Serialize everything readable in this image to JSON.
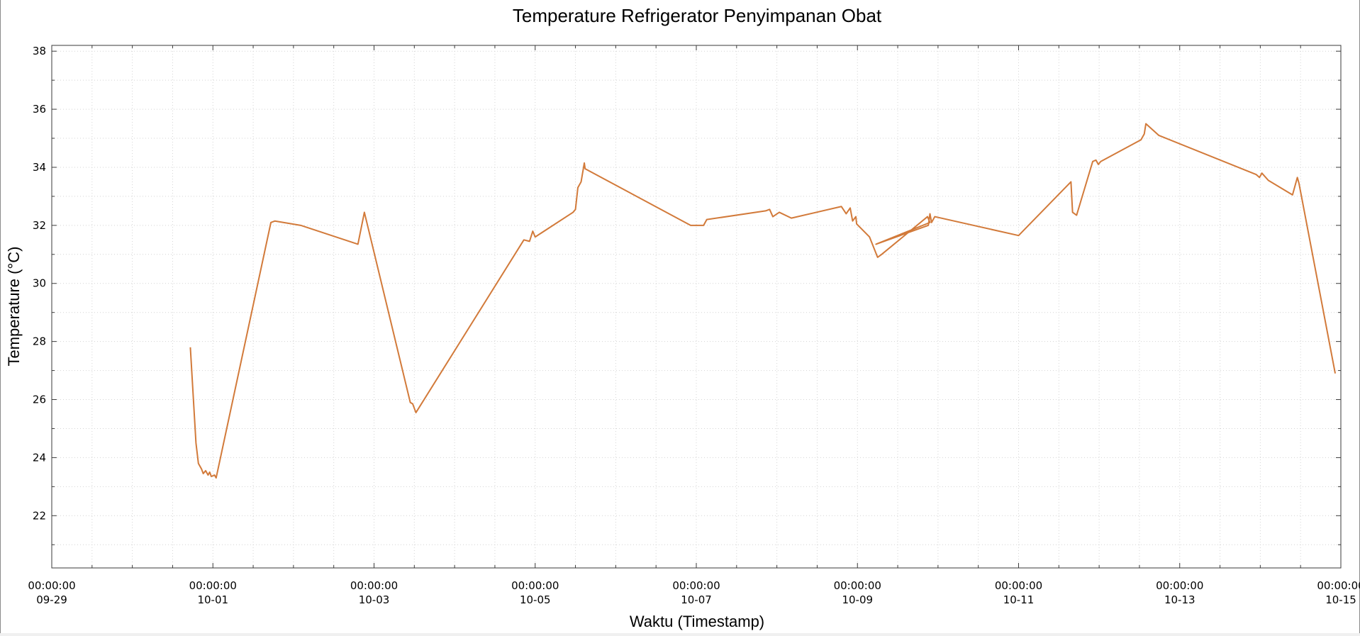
{
  "chart_data": {
    "type": "line",
    "title": "Temperature Refrigerator Penyimpanan Obat",
    "xlabel": "Waktu (Timestamp)",
    "ylabel": "Temperature (°C)",
    "x_start": "09-29",
    "x_end": "10-15",
    "ylim": [
      20.2,
      38.2
    ],
    "y_ticks": [
      22,
      24,
      26,
      28,
      30,
      32,
      34,
      36,
      38
    ],
    "x_ticks": [
      {
        "day": 0,
        "time": "00:00:00",
        "date": "09-29"
      },
      {
        "day": 2,
        "time": "00:00:00",
        "date": "10-01"
      },
      {
        "day": 4,
        "time": "00:00:00",
        "date": "10-03"
      },
      {
        "day": 6,
        "time": "00:00:00",
        "date": "10-05"
      },
      {
        "day": 8,
        "time": "00:00:00",
        "date": "10-07"
      },
      {
        "day": 10,
        "time": "00:00:00",
        "date": "10-09"
      },
      {
        "day": 12,
        "time": "00:00:00",
        "date": "10-11"
      },
      {
        "day": 14,
        "time": "00:00:00",
        "date": "10-13"
      },
      {
        "day": 16,
        "time": "00:00:00",
        "date": "10-15"
      }
    ],
    "grid": true,
    "legend": "none",
    "series": [
      {
        "color": "#d27a3a",
        "points": [
          [
            1.72,
            27.8
          ],
          [
            1.79,
            24.5
          ],
          [
            1.82,
            23.8
          ],
          [
            1.86,
            23.6
          ],
          [
            1.88,
            23.45
          ],
          [
            1.91,
            23.55
          ],
          [
            1.94,
            23.4
          ],
          [
            1.96,
            23.5
          ],
          [
            1.98,
            23.35
          ],
          [
            2.02,
            23.4
          ],
          [
            2.04,
            23.3
          ],
          [
            2.72,
            32.1
          ],
          [
            2.77,
            32.15
          ],
          [
            3.09,
            32.0
          ],
          [
            3.8,
            31.35
          ],
          [
            3.88,
            32.45
          ],
          [
            4.45,
            25.9
          ],
          [
            4.48,
            25.85
          ],
          [
            4.52,
            25.55
          ],
          [
            5.86,
            31.5
          ],
          [
            5.93,
            31.45
          ],
          [
            5.97,
            31.8
          ],
          [
            6.0,
            31.6
          ],
          [
            6.47,
            32.45
          ],
          [
            6.5,
            32.55
          ],
          [
            6.53,
            33.3
          ],
          [
            6.57,
            33.5
          ],
          [
            6.61,
            34.15
          ],
          [
            6.62,
            33.95
          ],
          [
            7.93,
            32.0
          ],
          [
            8.09,
            32.0
          ],
          [
            8.11,
            32.1
          ],
          [
            8.13,
            32.2
          ],
          [
            8.86,
            32.5
          ],
          [
            8.91,
            32.55
          ],
          [
            8.95,
            32.3
          ],
          [
            9.03,
            32.45
          ],
          [
            9.18,
            32.25
          ],
          [
            9.8,
            32.65
          ],
          [
            9.86,
            32.4
          ],
          [
            9.91,
            32.6
          ],
          [
            9.94,
            32.15
          ],
          [
            9.98,
            32.3
          ],
          [
            9.99,
            32.05
          ],
          [
            10.15,
            31.6
          ],
          [
            10.25,
            30.9
          ],
          [
            10.3,
            31.0
          ],
          [
            10.87,
            32.3
          ],
          [
            10.9,
            32.1
          ],
          [
            10.23,
            31.35
          ],
          [
            10.88,
            32.0
          ],
          [
            10.9,
            32.4
          ],
          [
            10.92,
            32.1
          ],
          [
            10.96,
            32.3
          ],
          [
            12.0,
            31.65
          ],
          [
            12.65,
            33.5
          ],
          [
            12.67,
            32.45
          ],
          [
            12.72,
            32.35
          ],
          [
            12.92,
            34.2
          ],
          [
            12.96,
            34.25
          ],
          [
            12.99,
            34.1
          ],
          [
            13.02,
            34.2
          ],
          [
            13.52,
            34.95
          ],
          [
            13.56,
            35.15
          ],
          [
            13.58,
            35.5
          ],
          [
            13.74,
            35.1
          ],
          [
            14.95,
            33.75
          ],
          [
            14.99,
            33.65
          ],
          [
            15.02,
            33.8
          ],
          [
            15.1,
            33.55
          ],
          [
            15.4,
            33.05
          ],
          [
            15.46,
            33.65
          ],
          [
            15.48,
            33.45
          ],
          [
            15.93,
            26.9
          ]
        ]
      }
    ]
  }
}
